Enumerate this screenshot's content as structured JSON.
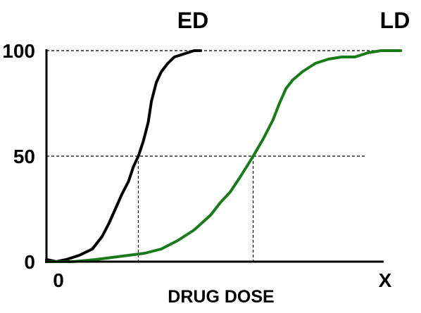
{
  "chart_data": {
    "type": "line",
    "title": "",
    "xlabel": "DRUG DOSE",
    "ylabel": "",
    "xlim": [
      0,
      10
    ],
    "ylim": [
      0,
      100
    ],
    "y_ticks": [
      "0",
      "50",
      "100"
    ],
    "x_tick_labels": [
      "0",
      "X"
    ],
    "grid": false,
    "reference_lines": [
      {
        "type": "horizontal",
        "y": 100,
        "style": "dashed"
      },
      {
        "type": "horizontal",
        "y": 50,
        "style": "dashed"
      },
      {
        "type": "vertical",
        "x": 2.8,
        "to_y": 50,
        "style": "dashed"
      },
      {
        "type": "vertical",
        "x": 6.3,
        "to_y": 50,
        "style": "dashed"
      }
    ],
    "series": [
      {
        "name": "ED",
        "color": "#000000",
        "points": [
          [
            0,
            1
          ],
          [
            0.3,
            0
          ],
          [
            0.6,
            1
          ],
          [
            1.0,
            3
          ],
          [
            1.4,
            6
          ],
          [
            1.7,
            12
          ],
          [
            1.9,
            18
          ],
          [
            2.1,
            25
          ],
          [
            2.3,
            32
          ],
          [
            2.5,
            38
          ],
          [
            2.65,
            45
          ],
          [
            2.8,
            50
          ],
          [
            2.95,
            57
          ],
          [
            3.1,
            66
          ],
          [
            3.2,
            76
          ],
          [
            3.35,
            85
          ],
          [
            3.5,
            90
          ],
          [
            3.7,
            94
          ],
          [
            3.9,
            97
          ],
          [
            4.1,
            98
          ],
          [
            4.3,
            99
          ],
          [
            4.5,
            100
          ],
          [
            4.7,
            100
          ]
        ]
      },
      {
        "name": "LD",
        "color": "#1a7a1a",
        "points": [
          [
            0,
            0
          ],
          [
            0.8,
            0
          ],
          [
            1.5,
            1
          ],
          [
            2.0,
            2
          ],
          [
            2.5,
            3
          ],
          [
            3.0,
            4
          ],
          [
            3.5,
            6
          ],
          [
            4.0,
            10
          ],
          [
            4.5,
            15
          ],
          [
            5.0,
            22
          ],
          [
            5.3,
            28
          ],
          [
            5.6,
            33
          ],
          [
            5.9,
            40
          ],
          [
            6.1,
            45
          ],
          [
            6.3,
            50
          ],
          [
            6.6,
            58
          ],
          [
            6.9,
            67
          ],
          [
            7.1,
            75
          ],
          [
            7.3,
            82
          ],
          [
            7.5,
            86
          ],
          [
            7.8,
            90
          ],
          [
            8.2,
            94
          ],
          [
            8.6,
            96
          ],
          [
            9.0,
            97
          ],
          [
            9.4,
            97
          ],
          [
            9.8,
            99
          ],
          [
            10.2,
            100
          ],
          [
            10.8,
            100
          ]
        ]
      }
    ]
  }
}
